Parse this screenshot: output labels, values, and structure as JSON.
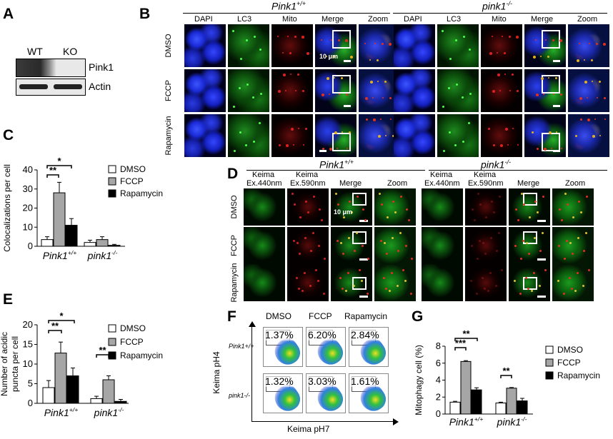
{
  "panelA": {
    "label": "A",
    "wt": "WT",
    "ko": "KO",
    "rows": [
      "Pink1",
      "Actin"
    ]
  },
  "panelB": {
    "label": "B",
    "group_wt": "Pink1",
    "group_wt_sup": "+/+",
    "group_ko": "pink1",
    "group_ko_sup": "-/-",
    "columns": [
      "DAPI",
      "LC3",
      "Mito",
      "Merge",
      "Zoom"
    ],
    "rows": [
      "DMSO",
      "FCCP",
      "Rapamycin"
    ],
    "scale": "10 μm"
  },
  "panelC": {
    "label": "C",
    "sig1": "*",
    "sig2": "**",
    "chart_data": {
      "type": "bar",
      "categories": [
        "Pink1+/+",
        "pink1-/-"
      ],
      "ylabel": "Colocalizations per cell",
      "ylim": [
        0,
        40
      ],
      "yticks": [
        0,
        10,
        20,
        30,
        40
      ],
      "series": [
        {
          "name": "DMSO",
          "values": [
            3.5,
            2
          ],
          "errors": [
            1.5,
            1.2
          ],
          "color": "#ffffff"
        },
        {
          "name": "FCCP",
          "values": [
            28,
            3.5
          ],
          "errors": [
            5.5,
            1.5
          ],
          "color": "#a6a6a6"
        },
        {
          "name": "Rapamycin",
          "values": [
            11,
            0.5
          ],
          "errors": [
            3.5,
            0.5
          ],
          "color": "#000000"
        }
      ],
      "legend": "right"
    }
  },
  "panelD": {
    "label": "D",
    "group_wt": "Pink1",
    "group_wt_sup": "+/+",
    "group_ko": "pink1",
    "group_ko_sup": "-/-",
    "col1a": "Keima",
    "col1b": "Ex.440nm",
    "col2a": "Keima",
    "col2b": "Ex.590nm",
    "col3": "Merge",
    "col4": "Zoom",
    "rows": [
      "DMSO",
      "FCCP",
      "Rapamycin"
    ],
    "scale": "10 μm"
  },
  "panelE": {
    "label": "E",
    "sig1": "*",
    "sig2": "**",
    "sig3": "**",
    "chart_data": {
      "type": "bar",
      "categories": [
        "Pink1+/+",
        "pink1-/-"
      ],
      "ylabel": "Number of acidic puncta per cell",
      "ylim": [
        0,
        20
      ],
      "yticks": [
        0,
        5,
        10,
        15,
        20
      ],
      "series": [
        {
          "name": "DMSO",
          "values": [
            4,
            1.2
          ],
          "errors": [
            1.8,
            0.6
          ],
          "color": "#ffffff"
        },
        {
          "name": "FCCP",
          "values": [
            12.8,
            6
          ],
          "errors": [
            2.8,
            1
          ],
          "color": "#a6a6a6"
        },
        {
          "name": "Rapamycin",
          "values": [
            7,
            0.5
          ],
          "errors": [
            2,
            0.5
          ],
          "color": "#000000"
        }
      ],
      "legend": "right"
    }
  },
  "panelF": {
    "label": "F",
    "cols": [
      "DMSO",
      "FCCP",
      "Rapamycin"
    ],
    "rows": [
      "Pink1+/+",
      "pink1-/-"
    ],
    "values": [
      [
        "1.37%",
        "6.20%",
        "2.84%"
      ],
      [
        "1.32%",
        "3.03%",
        "1.61%"
      ]
    ],
    "ylabel": "Keima pH4",
    "xlabel": "Keima pH7"
  },
  "panelG": {
    "label": "G",
    "sig1": "**",
    "sig2": "***",
    "sig3": "**",
    "chart_data": {
      "type": "bar",
      "categories": [
        "Pink1+/+",
        "pink1-/-"
      ],
      "ylabel": "Mitophagy cell (%)",
      "ylim": [
        0,
        8
      ],
      "yticks": [
        0,
        2,
        4,
        6,
        8
      ],
      "series": [
        {
          "name": "DMSO",
          "values": [
            1.4,
            1.3
          ],
          "errors": [
            0.1,
            0.1
          ],
          "color": "#ffffff"
        },
        {
          "name": "FCCP",
          "values": [
            6.2,
            3.05
          ],
          "errors": [
            0.1,
            0.08
          ],
          "color": "#a6a6a6"
        },
        {
          "name": "Rapamycin",
          "values": [
            2.85,
            1.55
          ],
          "errors": [
            0.25,
            0.3
          ],
          "color": "#000000"
        }
      ],
      "legend": "right"
    }
  }
}
